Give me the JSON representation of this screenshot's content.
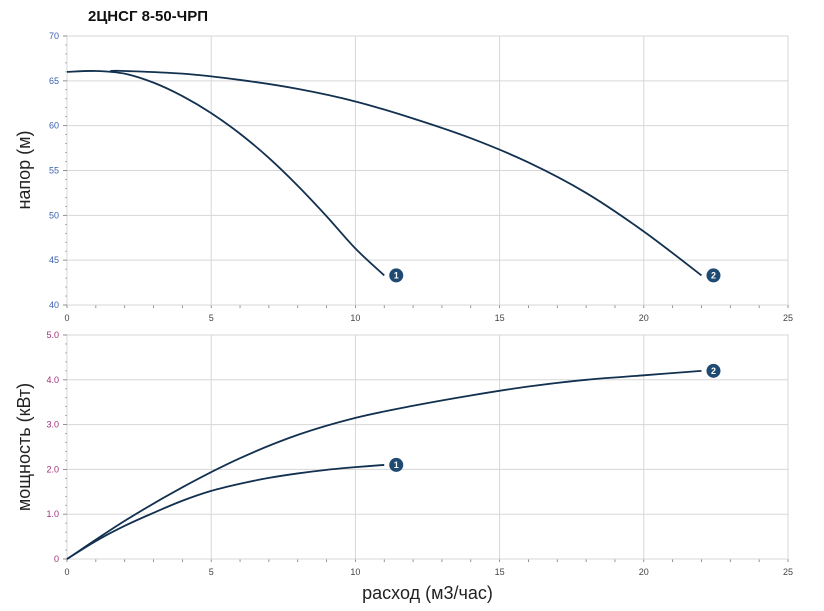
{
  "title": "2ЦНСГ 8-50-ЧРП",
  "colors": {
    "curve": "#12304f",
    "marker": "#1f4a72",
    "grid": "#d7d7d7",
    "frame": "#cfcfcf",
    "top_ticks": "#3a5fb0",
    "bottom_ticks": "#a0307a"
  },
  "chart_data": [
    {
      "type": "line",
      "ylabel": "напор (м)",
      "xlabel": "",
      "xlim": [
        0,
        25
      ],
      "ylim": [
        40,
        70
      ],
      "xticks": [
        "0",
        "5",
        "10",
        "15",
        "20",
        "25"
      ],
      "yticks": [
        "40",
        "45",
        "50",
        "55",
        "60",
        "65",
        "70"
      ],
      "grid": true,
      "series": [
        {
          "name": "1",
          "x": [
            0,
            1,
            2,
            3,
            4,
            5,
            6,
            7,
            8,
            9,
            10,
            11
          ],
          "y": [
            66,
            66.1,
            65.8,
            64.8,
            63.3,
            61.4,
            59.1,
            56.4,
            53.3,
            49.9,
            46.3,
            43.3
          ]
        },
        {
          "name": "2",
          "x": [
            1.5,
            2,
            4,
            6,
            8,
            10,
            12,
            14,
            16,
            18,
            20,
            22
          ],
          "y": [
            66.1,
            66.1,
            65.8,
            65.1,
            64.1,
            62.7,
            60.8,
            58.6,
            55.9,
            52.5,
            48.2,
            43.3
          ]
        }
      ]
    },
    {
      "type": "line",
      "ylabel": "мощность (кВт)",
      "xlabel": "расход (м3/час)",
      "xlim": [
        0,
        25
      ],
      "ylim": [
        0,
        5
      ],
      "xticks": [
        "0",
        "5",
        "10",
        "15",
        "20",
        "25"
      ],
      "yticks": [
        "0",
        "1.0",
        "2.0",
        "3.0",
        "4.0",
        "5.0"
      ],
      "grid": true,
      "series": [
        {
          "name": "1",
          "x": [
            0,
            1,
            2,
            3,
            4,
            5,
            6,
            7,
            8,
            9,
            10,
            11
          ],
          "y": [
            0,
            0.4,
            0.74,
            1.03,
            1.3,
            1.52,
            1.68,
            1.81,
            1.91,
            1.99,
            2.05,
            2.1
          ]
        },
        {
          "name": "2",
          "x": [
            0,
            2,
            4,
            6,
            8,
            10,
            12,
            14,
            16,
            18,
            20,
            22
          ],
          "y": [
            0,
            0.85,
            1.6,
            2.25,
            2.77,
            3.15,
            3.42,
            3.65,
            3.85,
            4.0,
            4.1,
            4.2
          ]
        }
      ]
    }
  ]
}
